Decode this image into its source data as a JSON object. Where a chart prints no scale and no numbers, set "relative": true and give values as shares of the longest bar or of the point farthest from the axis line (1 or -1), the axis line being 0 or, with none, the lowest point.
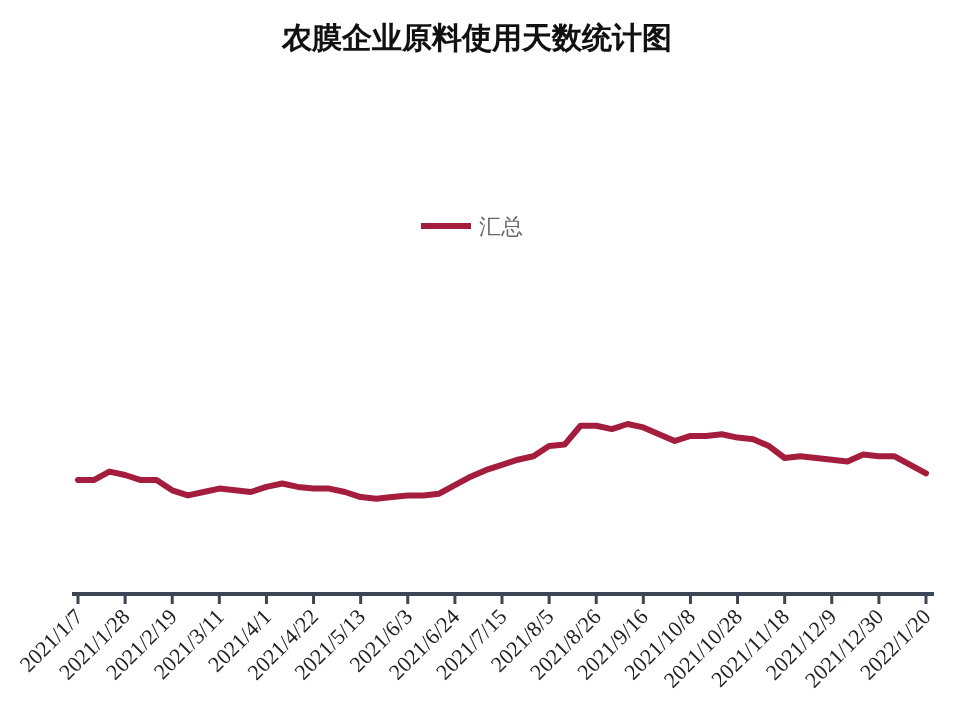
{
  "chart_data": {
    "type": "line",
    "title": "农膜企业原料使用天数统计图",
    "relative": true,
    "legend": "top",
    "categories": [
      "2021/1/7",
      null,
      null,
      "2021/1/28",
      null,
      null,
      "2021/2/19",
      null,
      null,
      "2021/3/11",
      null,
      null,
      "2021/4/1",
      null,
      null,
      "2021/4/22",
      null,
      null,
      "2021/5/13",
      null,
      null,
      "2021/6/3",
      null,
      null,
      "2021/6/24",
      null,
      null,
      "2021/7/15",
      null,
      null,
      "2021/8/5",
      null,
      null,
      "2021/8/26",
      null,
      null,
      "2021/9/16",
      null,
      null,
      "2021/10/8",
      null,
      null,
      "2021/10/28",
      null,
      null,
      "2021/11/18",
      null,
      null,
      "2021/12/9",
      null,
      null,
      "2021/12/30",
      null,
      null,
      "2022/1/20"
    ],
    "series": [
      {
        "name": "汇总",
        "color": "#a51d3d",
        "values": [
          0.67,
          0.67,
          0.72,
          0.7,
          0.67,
          0.67,
          0.61,
          0.58,
          0.6,
          0.62,
          0.61,
          0.6,
          0.63,
          0.65,
          0.63,
          0.62,
          0.62,
          0.6,
          0.57,
          0.56,
          0.57,
          0.58,
          0.58,
          0.59,
          0.64,
          0.69,
          0.73,
          0.76,
          0.79,
          0.81,
          0.87,
          0.88,
          0.99,
          0.99,
          0.97,
          1,
          0.98,
          0.94,
          0.9,
          0.93,
          0.93,
          0.94,
          0.92,
          0.91,
          0.87,
          0.8,
          0.81,
          0.8,
          0.79,
          0.78,
          0.82,
          0.81,
          0.81,
          0.76,
          0.71
        ]
      }
    ]
  }
}
